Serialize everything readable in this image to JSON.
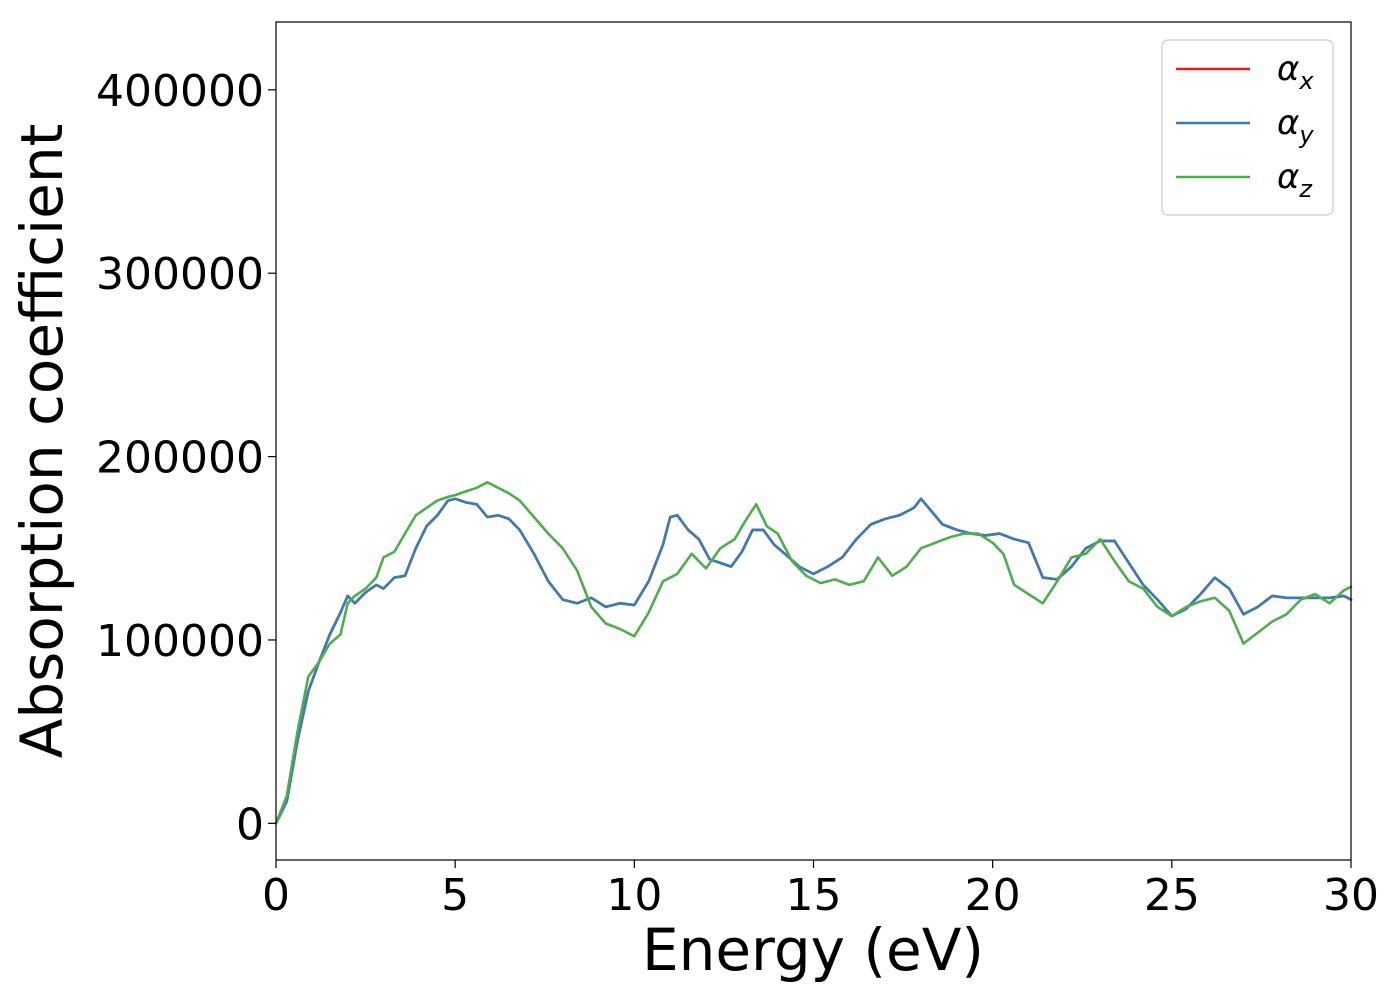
{
  "chart_data": {
    "type": "line",
    "title": "",
    "xlabel": "Energy (eV)",
    "ylabel": "Absorption coefficient",
    "xlim": [
      0,
      30
    ],
    "ylim": [
      -20000,
      437000
    ],
    "x_ticks": [
      0,
      5,
      10,
      15,
      20,
      25,
      30
    ],
    "x_tick_labels": [
      "0",
      "5",
      "10",
      "15",
      "20",
      "25",
      "30"
    ],
    "y_ticks": [
      0,
      100000,
      200000,
      300000,
      400000
    ],
    "y_tick_labels": [
      "0",
      "100000",
      "200000",
      "300000",
      "400000"
    ],
    "grid": false,
    "legend_position": "top-right",
    "series": [
      {
        "name": "α",
        "subscript": "x",
        "color": "#e41a1c",
        "x": [
          0,
          0.3,
          0.6,
          0.9,
          1.2,
          1.5,
          1.8,
          2.0,
          2.2,
          2.5,
          2.8,
          3.0,
          3.3,
          3.6,
          3.9,
          4.2,
          4.5,
          4.8,
          5.0,
          5.3,
          5.6,
          5.9,
          6.2,
          6.5,
          6.8,
          7.2,
          7.6,
          8.0,
          8.4,
          8.8,
          9.2,
          9.6,
          10.0,
          10.4,
          10.8,
          11.0,
          11.2,
          11.5,
          11.8,
          12.1,
          12.4,
          12.7,
          13.0,
          13.3,
          13.6,
          13.9,
          14.2,
          14.6,
          15.0,
          15.4,
          15.8,
          16.2,
          16.6,
          17.0,
          17.4,
          17.8,
          18.0,
          18.3,
          18.6,
          19.0,
          19.4,
          19.8,
          20.2,
          20.6,
          21.0,
          21.4,
          21.8,
          22.2,
          22.6,
          23.0,
          23.4,
          23.8,
          24.2,
          24.6,
          25.0,
          25.4,
          25.8,
          26.2,
          26.6,
          27.0,
          27.4,
          27.8,
          28.2,
          28.6,
          29.0,
          29.4,
          29.8,
          30.0
        ],
        "y": [
          0,
          12000,
          45000,
          72000,
          88000,
          103000,
          115000,
          124000,
          120000,
          126000,
          130000,
          128000,
          134000,
          135000,
          150000,
          162000,
          168000,
          176000,
          177000,
          175000,
          174000,
          167000,
          168000,
          166000,
          160000,
          147000,
          132000,
          122000,
          120000,
          123000,
          118000,
          120000,
          119000,
          132000,
          152000,
          167000,
          168000,
          160000,
          155000,
          144000,
          142000,
          140000,
          148000,
          160000,
          160000,
          152000,
          147000,
          140000,
          136000,
          140000,
          145000,
          155000,
          163000,
          166000,
          168000,
          172000,
          177000,
          170000,
          163000,
          160000,
          158000,
          157000,
          158000,
          155000,
          153000,
          134000,
          133000,
          140000,
          150000,
          154000,
          154000,
          142000,
          130000,
          122000,
          113000,
          117000,
          125000,
          134000,
          128000,
          114000,
          118000,
          124000,
          123000,
          123000,
          123000,
          123000,
          124000,
          122000
        ]
      },
      {
        "name": "α",
        "subscript": "y",
        "color": "#377eb8",
        "x": [
          0,
          0.3,
          0.6,
          0.9,
          1.2,
          1.5,
          1.8,
          2.0,
          2.2,
          2.5,
          2.8,
          3.0,
          3.3,
          3.6,
          3.9,
          4.2,
          4.5,
          4.8,
          5.0,
          5.3,
          5.6,
          5.9,
          6.2,
          6.5,
          6.8,
          7.2,
          7.6,
          8.0,
          8.4,
          8.8,
          9.2,
          9.6,
          10.0,
          10.4,
          10.8,
          11.0,
          11.2,
          11.5,
          11.8,
          12.1,
          12.4,
          12.7,
          13.0,
          13.3,
          13.6,
          13.9,
          14.2,
          14.6,
          15.0,
          15.4,
          15.8,
          16.2,
          16.6,
          17.0,
          17.4,
          17.8,
          18.0,
          18.3,
          18.6,
          19.0,
          19.4,
          19.8,
          20.2,
          20.6,
          21.0,
          21.4,
          21.8,
          22.2,
          22.6,
          23.0,
          23.4,
          23.8,
          24.2,
          24.6,
          25.0,
          25.4,
          25.8,
          26.2,
          26.6,
          27.0,
          27.4,
          27.8,
          28.2,
          28.6,
          29.0,
          29.4,
          29.8,
          30.0
        ],
        "y": [
          0,
          12000,
          45000,
          72000,
          88000,
          103000,
          115000,
          124000,
          120000,
          126000,
          130000,
          128000,
          134000,
          135000,
          150000,
          162000,
          168000,
          176000,
          177000,
          175000,
          174000,
          167000,
          168000,
          166000,
          160000,
          147000,
          132000,
          122000,
          120000,
          123000,
          118000,
          120000,
          119000,
          132000,
          152000,
          167000,
          168000,
          160000,
          155000,
          144000,
          142000,
          140000,
          148000,
          160000,
          160000,
          152000,
          147000,
          140000,
          136000,
          140000,
          145000,
          155000,
          163000,
          166000,
          168000,
          172000,
          177000,
          170000,
          163000,
          160000,
          158000,
          157000,
          158000,
          155000,
          153000,
          134000,
          133000,
          140000,
          150000,
          154000,
          154000,
          142000,
          130000,
          122000,
          113000,
          117000,
          125000,
          134000,
          128000,
          114000,
          118000,
          124000,
          123000,
          123000,
          123000,
          123000,
          124000,
          122000
        ]
      },
      {
        "name": "α",
        "subscript": "z",
        "color": "#4daf4a",
        "x": [
          0,
          0.3,
          0.6,
          0.9,
          1.2,
          1.5,
          1.8,
          2.0,
          2.2,
          2.5,
          2.8,
          3.0,
          3.3,
          3.6,
          3.9,
          4.2,
          4.5,
          4.8,
          5.0,
          5.3,
          5.6,
          5.9,
          6.2,
          6.5,
          6.8,
          7.2,
          7.6,
          8.0,
          8.4,
          8.8,
          9.2,
          9.6,
          10.0,
          10.4,
          10.8,
          11.2,
          11.6,
          12.0,
          12.4,
          12.8,
          13.1,
          13.4,
          13.7,
          14.0,
          14.4,
          14.8,
          15.2,
          15.6,
          16.0,
          16.4,
          16.8,
          17.2,
          17.6,
          18.0,
          18.4,
          18.8,
          19.2,
          19.6,
          20.0,
          20.3,
          20.6,
          21.0,
          21.4,
          21.8,
          22.2,
          22.6,
          23.0,
          23.4,
          23.8,
          24.2,
          24.6,
          25.0,
          25.4,
          25.8,
          26.2,
          26.6,
          27.0,
          27.4,
          27.8,
          28.2,
          28.6,
          29.0,
          29.4,
          29.8,
          30.0
        ],
        "y": [
          0,
          15000,
          50000,
          80000,
          88000,
          98000,
          103000,
          120000,
          124000,
          128000,
          134000,
          145000,
          148000,
          158000,
          168000,
          172000,
          176000,
          178000,
          179000,
          181000,
          183000,
          186000,
          183000,
          180000,
          176000,
          167000,
          158000,
          150000,
          138000,
          118000,
          109000,
          106000,
          102000,
          115000,
          132000,
          136000,
          147000,
          139000,
          150000,
          155000,
          165000,
          174000,
          162000,
          158000,
          143000,
          135000,
          131000,
          133000,
          130000,
          132000,
          145000,
          135000,
          140000,
          150000,
          153000,
          156000,
          158000,
          158000,
          153000,
          147000,
          130000,
          125000,
          120000,
          132000,
          145000,
          147000,
          155000,
          143000,
          132000,
          128000,
          118000,
          113000,
          118000,
          121000,
          123000,
          116000,
          98000,
          104000,
          110000,
          114000,
          122000,
          125000,
          120000,
          127000,
          129000
        ]
      }
    ]
  }
}
